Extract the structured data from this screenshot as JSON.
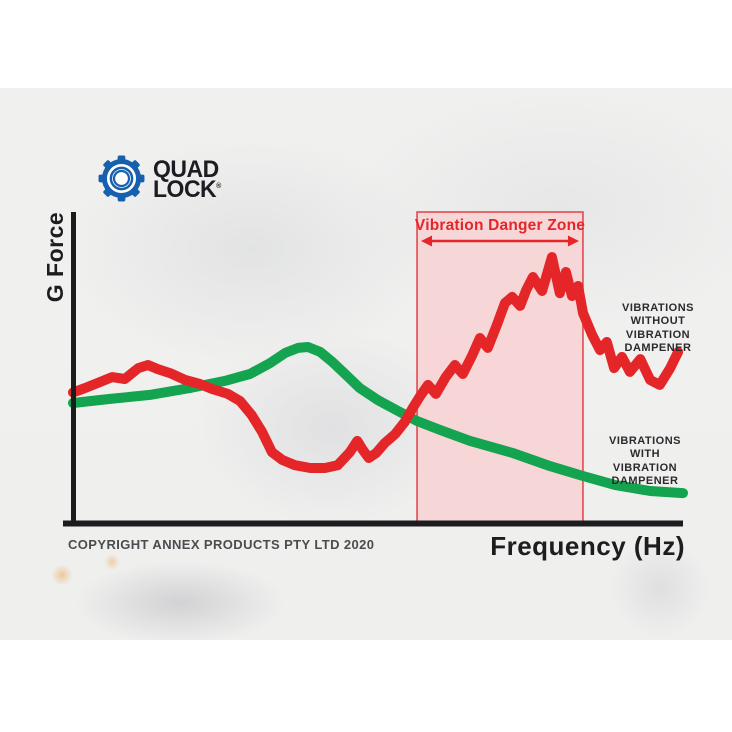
{
  "brand": {
    "name_line1": "QUAD",
    "name_line2": "LOCK",
    "registered": "®",
    "logo_blue": "#1660ae",
    "ink": "#1c1c22"
  },
  "chart_data": {
    "type": "line",
    "title": "",
    "xlabel": "Frequency (Hz)",
    "ylabel": "G Force",
    "x_range": [
      0,
      100
    ],
    "y_range": [
      0,
      100
    ],
    "grid": false,
    "axis_color": "#1c1c1e",
    "danger_zone": {
      "label": "Vibration Danger Zone",
      "x_start": 56.4,
      "x_end": 83.6,
      "fill": "#f8d3d5",
      "fill_opacity": 0.88,
      "border_color": "#e4494e",
      "label_color": "#e42629"
    },
    "series": [
      {
        "name": "VIBRATIONS WITHOUT VIBRATION DAMPENER",
        "color": "#e42629",
        "width": 10,
        "points": [
          [
            0,
            42
          ],
          [
            2,
            43.4
          ],
          [
            4.4,
            45.3
          ],
          [
            6.4,
            46.9
          ],
          [
            8.5,
            46.3
          ],
          [
            10.7,
            49.8
          ],
          [
            12.3,
            50.8
          ],
          [
            13.9,
            49.5
          ],
          [
            15.9,
            48.2
          ],
          [
            18.4,
            46
          ],
          [
            20.8,
            44.7
          ],
          [
            22.8,
            43.1
          ],
          [
            25.4,
            41.5
          ],
          [
            27.4,
            39.2
          ],
          [
            29.3,
            34.7
          ],
          [
            31,
            29.3
          ],
          [
            32.6,
            22.8
          ],
          [
            34.3,
            20.3
          ],
          [
            36.4,
            18.6
          ],
          [
            38.9,
            17.7
          ],
          [
            41.3,
            17.7
          ],
          [
            43.4,
            18.6
          ],
          [
            45.4,
            22.8
          ],
          [
            46.6,
            26.4
          ],
          [
            47.5,
            23.5
          ],
          [
            48.5,
            20.9
          ],
          [
            49.7,
            22.5
          ],
          [
            51.1,
            25.7
          ],
          [
            52.8,
            28.6
          ],
          [
            54.4,
            32.5
          ],
          [
            55.7,
            37
          ],
          [
            56.9,
            40.8
          ],
          [
            58.2,
            44.4
          ],
          [
            59.5,
            41.5
          ],
          [
            61.1,
            46.9
          ],
          [
            62.6,
            50.8
          ],
          [
            63.9,
            47.9
          ],
          [
            65.4,
            53.7
          ],
          [
            66.7,
            59.5
          ],
          [
            68,
            56.3
          ],
          [
            69.5,
            63.7
          ],
          [
            70.8,
            70.7
          ],
          [
            72,
            72.7
          ],
          [
            73.3,
            69.8
          ],
          [
            74.3,
            74.9
          ],
          [
            75.4,
            79.1
          ],
          [
            76.9,
            74.6
          ],
          [
            78.5,
            85.5
          ],
          [
            79.8,
            73.9
          ],
          [
            80.8,
            80.7
          ],
          [
            81.8,
            73
          ],
          [
            82.8,
            76.2
          ],
          [
            83.6,
            67.5
          ],
          [
            85.1,
            60.5
          ],
          [
            86.4,
            55.6
          ],
          [
            87.5,
            58.2
          ],
          [
            88.7,
            49.8
          ],
          [
            90,
            53.4
          ],
          [
            91.3,
            48.6
          ],
          [
            93,
            52.7
          ],
          [
            94.6,
            46
          ],
          [
            96.2,
            44.4
          ],
          [
            97.9,
            49.8
          ],
          [
            99.2,
            55
          ]
        ]
      },
      {
        "name": "VIBRATIONS WITH VIBRATION DAMPENER",
        "color": "#14a34e",
        "width": 10,
        "points": [
          [
            0,
            38.6
          ],
          [
            6.1,
            39.9
          ],
          [
            12.6,
            41.2
          ],
          [
            19.2,
            43.4
          ],
          [
            24.9,
            45.7
          ],
          [
            29,
            47.9
          ],
          [
            32.3,
            51.4
          ],
          [
            34.8,
            54.7
          ],
          [
            36.9,
            56.3
          ],
          [
            38.5,
            56.6
          ],
          [
            40.5,
            55
          ],
          [
            42.5,
            51.8
          ],
          [
            44.6,
            47.9
          ],
          [
            47,
            43.4
          ],
          [
            50,
            39.5
          ],
          [
            53.3,
            36
          ],
          [
            56.4,
            32.8
          ],
          [
            60.2,
            29.9
          ],
          [
            65.1,
            26.4
          ],
          [
            72.1,
            22.5
          ],
          [
            78.2,
            18.3
          ],
          [
            83.6,
            15.1
          ],
          [
            88.9,
            12.2
          ],
          [
            94.6,
            10.3
          ],
          [
            100,
            9.6
          ]
        ]
      }
    ]
  },
  "annotations": {
    "without_dampener": "VIBRATIONS\nWITHOUT\nVIBRATION\nDAMPENER",
    "with_dampener": "VIBRATIONS\nWITH\nVIBRATION\nDAMPENER"
  },
  "footer": {
    "copyright": "COPYRIGHT ANNEX PRODUCTS PTY LTD 2020"
  }
}
